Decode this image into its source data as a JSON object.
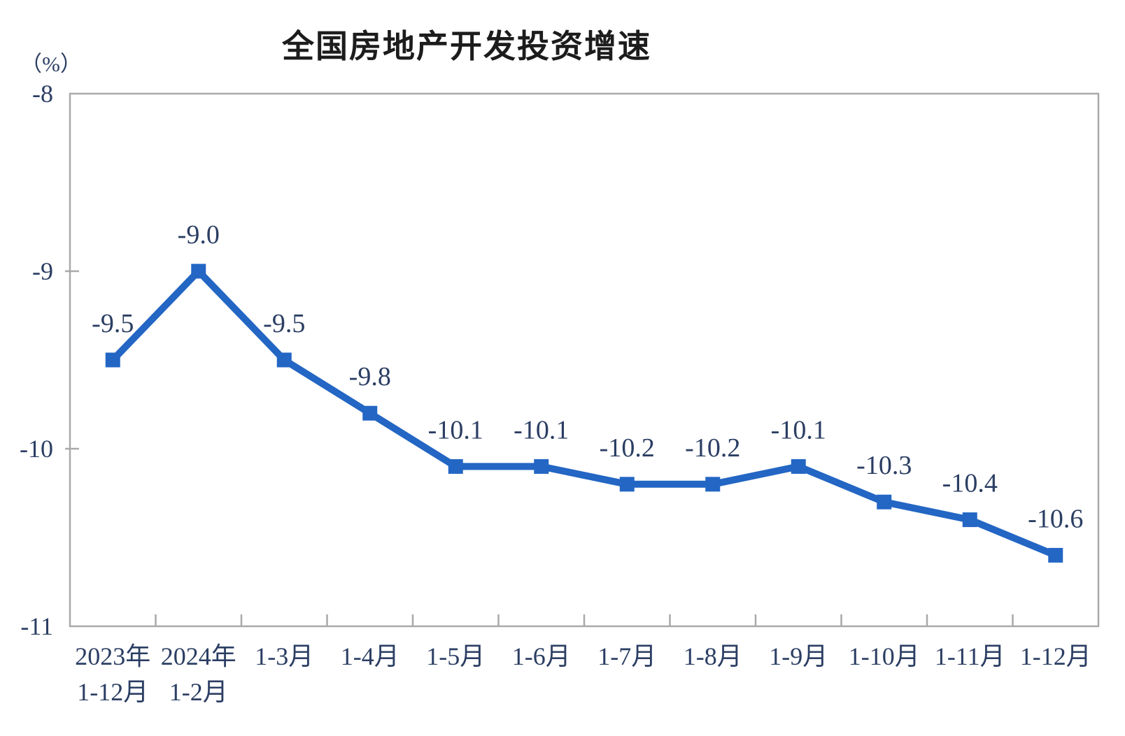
{
  "chart": {
    "title": "全国房地产开发投资增速",
    "unit_label": "（%）"
  },
  "colors": {
    "line": "#2366c4",
    "marker": "#2366c4",
    "axis": "#a9a9a9",
    "tick_text": "#2b3e63",
    "data_label_text": "#2b3e63",
    "title_text": "#1c1c1c",
    "background": "#ffffff"
  },
  "chart_data": {
    "type": "line",
    "title": "全国房地产开发投资增速",
    "ylabel": "（%）",
    "xlabel": "",
    "ylim": [
      -11,
      -8
    ],
    "grid": false,
    "legend": "none",
    "marker_shape": "square",
    "y_ticks": [
      -8,
      -9,
      -10,
      -11
    ],
    "y_tick_labels": [
      "-8",
      "-9",
      "-10",
      "-11"
    ],
    "categories": [
      [
        "2023年",
        "1-12月"
      ],
      [
        "2024年",
        "1-2月"
      ],
      [
        "1-3月"
      ],
      [
        "1-4月"
      ],
      [
        "1-5月"
      ],
      [
        "1-6月"
      ],
      [
        "1-7月"
      ],
      [
        "1-8月"
      ],
      [
        "1-9月"
      ],
      [
        "1-10月"
      ],
      [
        "1-11月"
      ],
      [
        "1-12月"
      ]
    ],
    "values": [
      -9.5,
      -9.0,
      -9.5,
      -9.8,
      -10.1,
      -10.1,
      -10.2,
      -10.2,
      -10.1,
      -10.3,
      -10.4,
      -10.6
    ],
    "point_labels": [
      "-9.5",
      "-9.0",
      "-9.5",
      "-9.8",
      "-10.1",
      "-10.1",
      "-10.2",
      "-10.2",
      "-10.1",
      "-10.3",
      "-10.4",
      "-10.6"
    ]
  }
}
